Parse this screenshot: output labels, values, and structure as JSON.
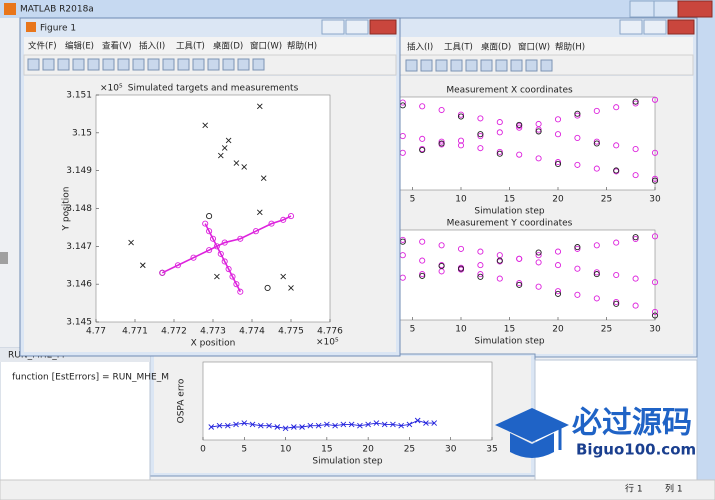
{
  "app": {
    "title": "MATLAB R2018a"
  },
  "figure1": {
    "title": "Figure 1",
    "menu": [
      "文件(F)",
      "编辑(E)",
      "查看(V)",
      "插入(I)",
      "工具(T)",
      "桌面(D)",
      "窗口(W)",
      "帮助(H)"
    ],
    "chart_data": {
      "type": "scatter",
      "title": "Simulated targets and measurements",
      "x_label": "X position",
      "y_label": "Y position",
      "x_scale_label": "×10⁵",
      "y_scale_label": "×10⁵",
      "xlim": [
        4.77,
        4.776
      ],
      "xticks": [
        4.77,
        4.771,
        4.772,
        4.773,
        4.774,
        4.775,
        4.776
      ],
      "ylim": [
        3.145,
        3.151
      ],
      "yticks": [
        3.145,
        3.146,
        3.147,
        3.148,
        3.149,
        3.15,
        3.151
      ],
      "series": [
        {
          "color": "#222222",
          "marker": "x",
          "x": [
            4.7728,
            4.7742,
            4.7734,
            4.7733,
            4.7732,
            4.7736,
            4.7743,
            4.7742,
            4.7709,
            4.7712,
            4.7731,
            4.7748,
            4.775,
            4.7738
          ],
          "values": [
            3.1502,
            3.1507,
            3.1498,
            3.1496,
            3.1494,
            3.1492,
            3.1488,
            3.1479,
            3.1471,
            3.1465,
            3.1462,
            3.1462,
            3.1459,
            3.1491
          ]
        },
        {
          "color": "#222222",
          "marker": "o",
          "x": [
            4.7729,
            4.7717,
            4.7744
          ],
          "values": [
            3.1478,
            3.1463,
            3.1459
          ]
        },
        {
          "color": "#dd22dd",
          "marker": "o",
          "line": true,
          "x": [
            4.7717,
            4.7721,
            4.7725,
            4.7729,
            4.7733,
            4.7737,
            4.7741,
            4.7745,
            4.7748,
            4.775
          ],
          "values": [
            3.1463,
            3.1465,
            3.1467,
            3.1469,
            3.1471,
            3.1472,
            3.1474,
            3.1476,
            3.1477,
            3.1478
          ]
        },
        {
          "color": "#dd22dd",
          "marker": "o",
          "line": true,
          "x": [
            4.7728,
            4.7729,
            4.773,
            4.7731,
            4.7732,
            4.7733,
            4.7734,
            4.7735,
            4.7736,
            4.7737
          ],
          "values": [
            3.1476,
            3.1474,
            3.1472,
            3.147,
            3.1468,
            3.1466,
            3.1464,
            3.1462,
            3.146,
            3.1458
          ]
        }
      ]
    }
  },
  "figure2": {
    "menu": [
      "插入(I)",
      "工具(T)",
      "桌面(D)",
      "窗口(W)",
      "帮助(H)"
    ],
    "charts": [
      {
        "type": "scatter",
        "title": "Measurement X coordinates",
        "x_label": "Simulation step",
        "x": [
          4,
          6,
          8,
          10,
          12,
          14,
          16,
          18,
          20,
          22,
          24,
          26,
          28,
          30
        ],
        "xlim": [
          0,
          30
        ],
        "xticks": [
          5,
          10,
          15,
          20,
          25,
          30
        ],
        "ylim": [
          0,
          10
        ],
        "series": [
          {
            "color": "#dd22dd",
            "marker": "o",
            "values": [
              9.4,
              9.0,
              8.6,
              8.1,
              7.7,
              7.3,
              6.9,
              6.5,
              6.0,
              5.6,
              5.2,
              4.8,
              4.4,
              4.0
            ]
          },
          {
            "color": "#dd22dd",
            "marker": "o",
            "values": [
              4.0,
              4.4,
              4.9,
              5.3,
              5.8,
              6.2,
              6.7,
              7.1,
              7.6,
              8.0,
              8.5,
              8.9,
              9.3,
              9.7
            ]
          },
          {
            "color": "#dd22dd",
            "marker": "o",
            "values": [
              5.8,
              5.5,
              5.2,
              4.8,
              4.5,
              4.1,
              3.8,
              3.4,
              3.0,
              2.7,
              2.3,
              2.0,
              1.6,
              1.2
            ]
          },
          {
            "color": "#222222",
            "marker": "o",
            "values": [
              9.1,
              4.3,
              5.0,
              7.9,
              6.0,
              3.9,
              7.0,
              6.3,
              2.8,
              8.2,
              5.0,
              2.1,
              9.5,
              1.0
            ]
          }
        ]
      },
      {
        "type": "scatter",
        "title": "Measurement Y coordinates",
        "x_label": "Simulation step",
        "x": [
          4,
          6,
          8,
          10,
          12,
          14,
          16,
          18,
          20,
          22,
          24,
          26,
          28,
          30
        ],
        "xlim": [
          0,
          30
        ],
        "xticks": [
          5,
          10,
          15,
          20,
          25,
          30
        ],
        "ylim": [
          0,
          10
        ],
        "series": [
          {
            "color": "#dd22dd",
            "marker": "o",
            "values": [
              8.9,
              8.7,
              8.3,
              7.9,
              7.6,
              7.2,
              6.8,
              6.4,
              6.1,
              5.7,
              5.3,
              5.0,
              4.6,
              4.2
            ]
          },
          {
            "color": "#dd22dd",
            "marker": "o",
            "values": [
              4.7,
              5.1,
              5.4,
              5.8,
              6.1,
              6.5,
              6.8,
              7.2,
              7.6,
              7.9,
              8.3,
              8.6,
              9.0,
              9.3
            ]
          },
          {
            "color": "#dd22dd",
            "marker": "o",
            "values": [
              7.2,
              6.6,
              6.1,
              5.6,
              5.1,
              4.6,
              4.1,
              3.7,
              3.2,
              2.8,
              2.4,
              2.0,
              1.6,
              0.9
            ]
          },
          {
            "color": "#222222",
            "marker": "o",
            "values": [
              8.7,
              4.9,
              6.0,
              5.7,
              4.8,
              6.6,
              3.9,
              7.5,
              2.9,
              8.1,
              5.1,
              1.8,
              9.2,
              0.5
            ]
          }
        ]
      }
    ]
  },
  "figure3": {
    "chart_data": {
      "type": "line",
      "x_label": "Simulation step",
      "y_label": "OSPA erro",
      "x": [
        1,
        2,
        3,
        4,
        5,
        6,
        7,
        8,
        9,
        10,
        11,
        12,
        13,
        14,
        15,
        16,
        17,
        18,
        19,
        20,
        21,
        22,
        23,
        24,
        25,
        26,
        27,
        28
      ],
      "xlim": [
        0,
        35
      ],
      "xticks": [
        0,
        5,
        10,
        15,
        20,
        25,
        30,
        35
      ],
      "ylim": [
        0,
        60
      ],
      "series": [
        {
          "color": "#2222dd",
          "marker": "x",
          "values": [
            10,
            11,
            11,
            12,
            13,
            12,
            11,
            11,
            10,
            9,
            10,
            10,
            11,
            11,
            12,
            11,
            12,
            12,
            11,
            12,
            13,
            12,
            12,
            11,
            12,
            15,
            13,
            13
          ]
        }
      ]
    }
  },
  "command_window": {
    "tab": "RUN_MHE_M",
    "code": "function [EstErrors]  = RUN_MHE_M"
  },
  "status_bar": {
    "row": "行 1",
    "col": "列 1"
  },
  "watermark": {
    "title": "必过源码",
    "url": "Biguo100.com"
  }
}
